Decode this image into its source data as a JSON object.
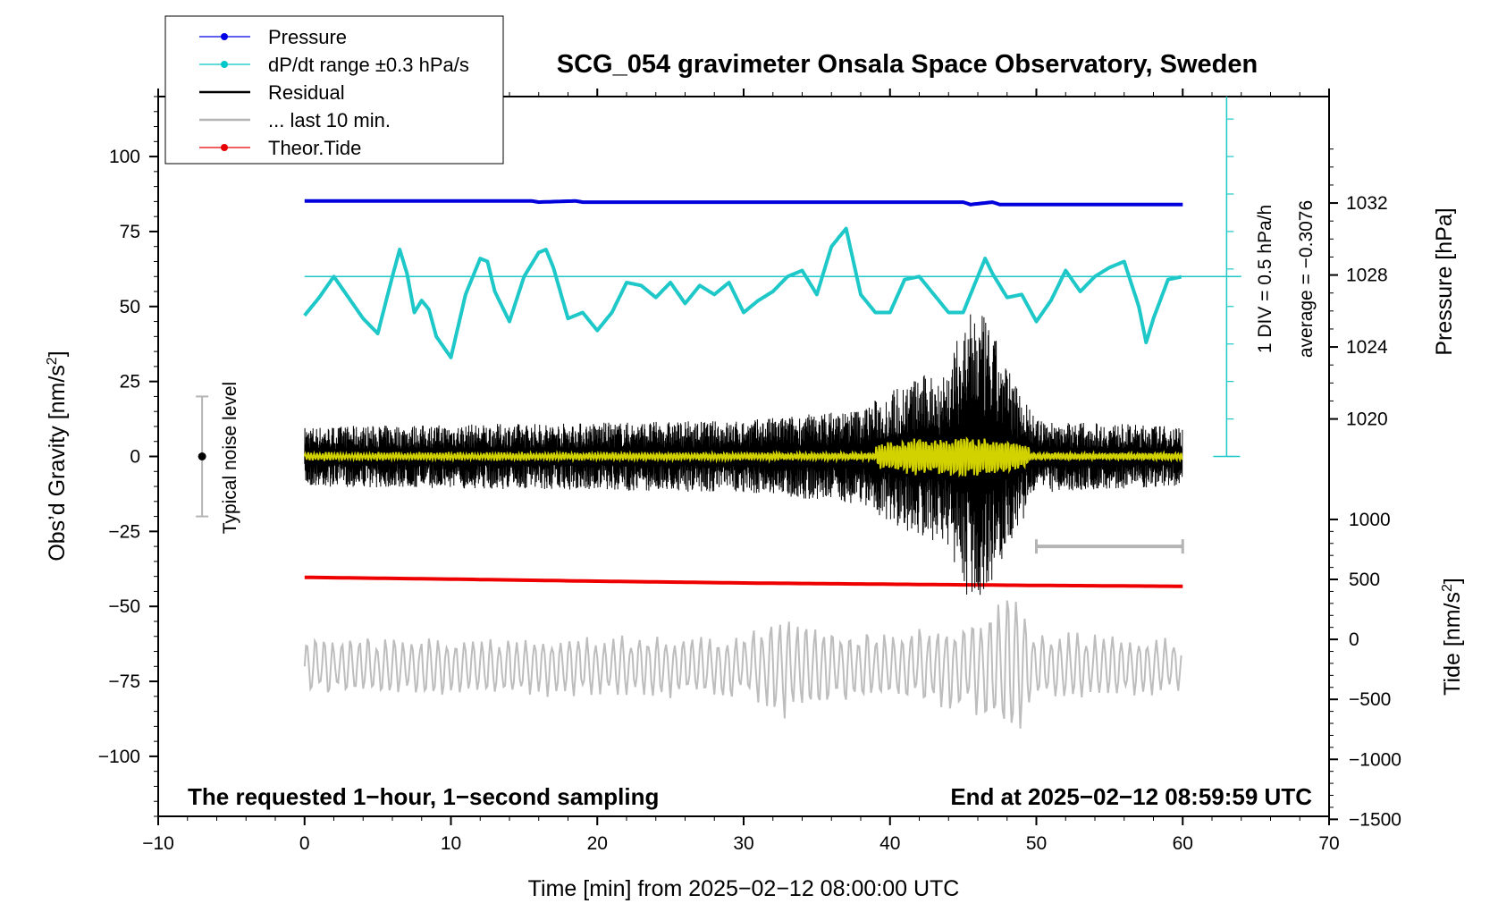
{
  "chart_data": {
    "type": "line",
    "title": "SCG_054 gravimeter Onsala Space Observatory, Sweden",
    "xlabel": "Time [min] from 2025−02−12 08:00:00 UTC",
    "ylabel_left": "Obs’d Gravity [nm/s",
    "ylabel_left_sup": "2",
    "ylabel_left_end": "]",
    "ylabel_pressure": "Pressure [hPa]",
    "ylabel_tide": "Tide [nm/s",
    "ylabel_tide_sup": "2",
    "ylabel_tide_end": "]",
    "xlim": [
      -10,
      70
    ],
    "ylim": [
      -120,
      120
    ],
    "x_ticks": [
      "−10",
      "0",
      "10",
      "20",
      "30",
      "40",
      "50",
      "60",
      "70"
    ],
    "x_tick_values": [
      -10,
      0,
      10,
      20,
      30,
      40,
      50,
      60,
      70
    ],
    "y_ticks": [
      "100",
      "75",
      "50",
      "25",
      "0",
      "−25",
      "−50",
      "−75",
      "−100"
    ],
    "y_tick_values": [
      100,
      75,
      50,
      25,
      0,
      -25,
      -50,
      -75,
      -100
    ],
    "pressure_ticks": [
      "1032",
      "1028",
      "1024",
      "1020"
    ],
    "pressure_tick_values": [
      1032,
      1028,
      1024,
      1020
    ],
    "tide_ticks": [
      "1000",
      "500",
      "0",
      "−500",
      "−1000",
      "−1500"
    ],
    "tide_tick_values": [
      1000,
      500,
      0,
      -500,
      -1000,
      -1500
    ],
    "footer_left": "The requested 1−hour, 1−second sampling",
    "footer_right": "End at 2025−02−12 08:59:59 UTC",
    "noise_label": "Typical noise level",
    "scale_label_1": "1 DIV = 0.5 hPa/h",
    "scale_label_2": "average = −0.3076",
    "legend": [
      {
        "label": "Pressure",
        "color": "#0000e6",
        "marker": true
      },
      {
        "label": "dP/dt range ±0.3 hPa/s",
        "color": "#00c8c8",
        "marker": true
      },
      {
        "label": "Residual",
        "color": "#000000",
        "marker": false
      },
      {
        "label": "... last 10 min.",
        "color": "#b4b4b4",
        "marker": false
      },
      {
        "label": "Theor.Tide",
        "color": "#e60000",
        "marker": true
      }
    ],
    "colors": {
      "pressure": "#0000dd",
      "dpdt": "#1ec8c8",
      "residual": "#000000",
      "last10": "#bdbdbd",
      "tide": "#ee0000",
      "smoothed": "#d2d200",
      "noise": "#b4b4b4"
    },
    "series": [
      {
        "name": "Pressure",
        "x": [
          0,
          15.5,
          16,
          18.5,
          19,
          45,
          45.5,
          47,
          47.5,
          60
        ],
        "y": [
          85.2,
          85.2,
          84.8,
          85.2,
          84.8,
          84.8,
          84.0,
          84.8,
          84.0,
          84.0
        ]
      },
      {
        "name": "Theor.Tide",
        "x": [
          0,
          10,
          20,
          30,
          40,
          50,
          60
        ],
        "y": [
          -40.3,
          -40.9,
          -41.6,
          -42.2,
          -42.6,
          -43.0,
          -43.3
        ]
      },
      {
        "name": "dP/dt range ±0.3 hPa/s",
        "x": [
          0,
          1,
          2,
          3,
          4,
          5,
          6,
          6.5,
          7,
          7.5,
          8,
          8.5,
          9,
          10,
          11,
          12,
          12.5,
          13,
          14,
          15,
          16,
          16.5,
          17,
          18,
          19,
          20,
          21,
          22,
          23,
          24,
          25,
          26,
          27,
          28,
          29,
          30,
          31,
          32,
          33,
          34,
          35,
          36,
          37,
          37.5,
          38,
          39,
          40,
          41,
          42,
          43,
          44,
          45,
          46,
          46.5,
          47,
          48,
          49,
          50,
          51,
          52,
          53,
          54,
          55,
          56,
          57,
          57.5,
          58,
          59,
          60
        ],
        "y": [
          47,
          53,
          60,
          53,
          46,
          41,
          60,
          69,
          61,
          48,
          52,
          49,
          40,
          33,
          54,
          66,
          65,
          55,
          45,
          60,
          68,
          69,
          63,
          46,
          48,
          42,
          48,
          58,
          57,
          53,
          58,
          51,
          57,
          54,
          58,
          48,
          52,
          55,
          60,
          62,
          54,
          70,
          76,
          65,
          54,
          48,
          48,
          59,
          60,
          54,
          48,
          48,
          60,
          66,
          61,
          53,
          54,
          45,
          52,
          62,
          55,
          60,
          63,
          65,
          50,
          38,
          46,
          59,
          60
        ]
      },
      {
        "name": "dP/dt average",
        "x": [
          0,
          64
        ],
        "y": [
          60,
          60
        ]
      }
    ],
    "residual_envelope": {
      "x": [
        0,
        30,
        38,
        41,
        44,
        45,
        46,
        47,
        48,
        49,
        50,
        60
      ],
      "y": [
        10,
        12,
        16,
        25,
        30,
        45,
        50,
        42,
        30,
        22,
        12,
        10
      ]
    },
    "last10_offset": -70,
    "last10_envelope": {
      "x": [
        0,
        30,
        33,
        34,
        40,
        45,
        47,
        48,
        49,
        50,
        60
      ],
      "y": [
        10,
        11,
        20,
        14,
        12,
        16,
        22,
        28,
        26,
        12,
        10
      ]
    },
    "noise_bar": {
      "x": -7,
      "y": [
        -20,
        0,
        20
      ]
    },
    "last10_bar": {
      "x": [
        50,
        60
      ],
      "y": -30
    },
    "dpdt_scale": {
      "x": 63,
      "y": [
        0,
        120
      ]
    }
  }
}
